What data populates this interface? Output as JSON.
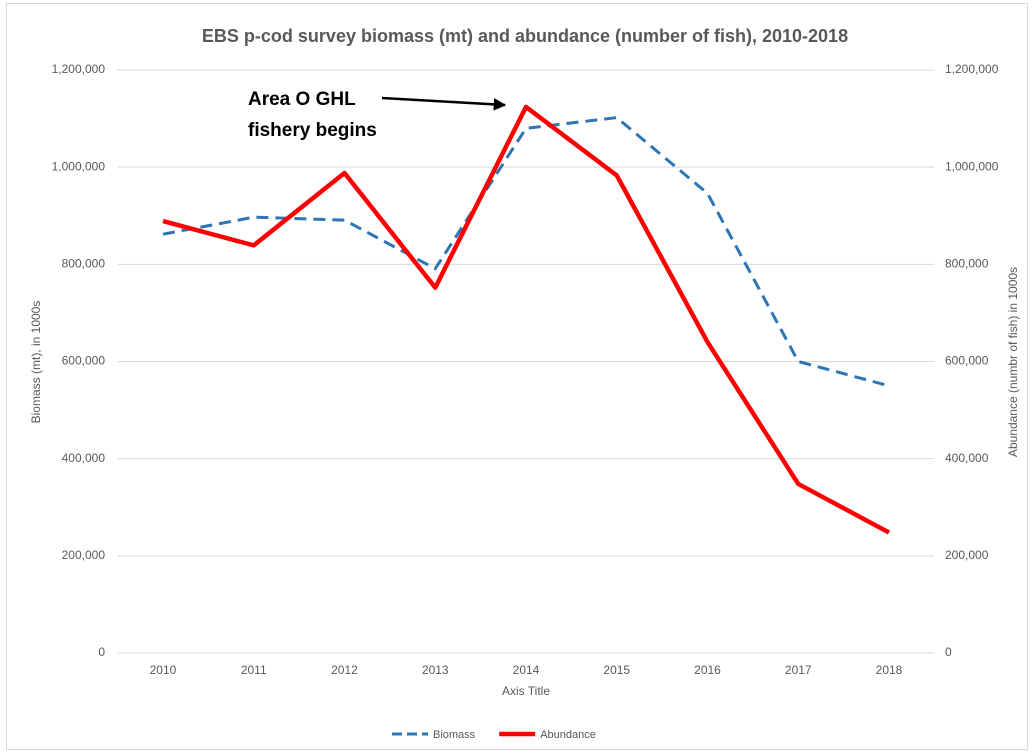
{
  "chart_data": {
    "type": "line",
    "title": "EBS p-cod survey biomass (mt) and abundance (number of fish), 2010-2018",
    "x_label": "Axis Title",
    "y_label": "Biomass (mt), in 1000s",
    "y2_label": "Abundance (numbr of fish) in 1000s",
    "annotation": {
      "lines": [
        "Area O GHL",
        "fishery begins"
      ]
    },
    "categories": [
      "2010",
      "2011",
      "2012",
      "2013",
      "2014",
      "2015",
      "2016",
      "2017",
      "2018"
    ],
    "series": [
      {
        "name": "Biomass",
        "color": "#2e75b6",
        "dash": true,
        "values": [
          862000,
          897000,
          891000,
          791000,
          1080000,
          1102000,
          946000,
          600000,
          550000
        ]
      },
      {
        "name": "Abundance",
        "color": "#ff0000",
        "dash": false,
        "axis": "y2",
        "values": [
          889000,
          839000,
          988000,
          752000,
          1124000,
          983000,
          640000,
          348000,
          248000
        ]
      }
    ],
    "ylim": [
      0,
      1200000
    ],
    "yticks": [
      0,
      {
        "value": 200000,
        "label": "200,000"
      },
      {
        "value": 400000,
        "label": "400,000"
      },
      {
        "value": 600000,
        "label": "600,000"
      },
      {
        "value": 800000,
        "label": "800,000"
      },
      {
        "value": 1000000,
        "label": "1,000,000"
      },
      {
        "value": 1200000,
        "label": "1,200,000"
      }
    ],
    "y2lim": [
      0,
      1200000
    ],
    "y2ticks": [
      0,
      {
        "value": 200000,
        "label": "200,000"
      },
      {
        "value": 400000,
        "label": "400,000"
      },
      {
        "value": 600000,
        "label": "600,000"
      },
      {
        "value": 800000,
        "label": "800,000"
      },
      {
        "value": 1000000,
        "label": "1,000,000"
      },
      {
        "value": 1200000,
        "label": "1,200,000"
      }
    ],
    "grid": true,
    "legend": "bottom"
  }
}
